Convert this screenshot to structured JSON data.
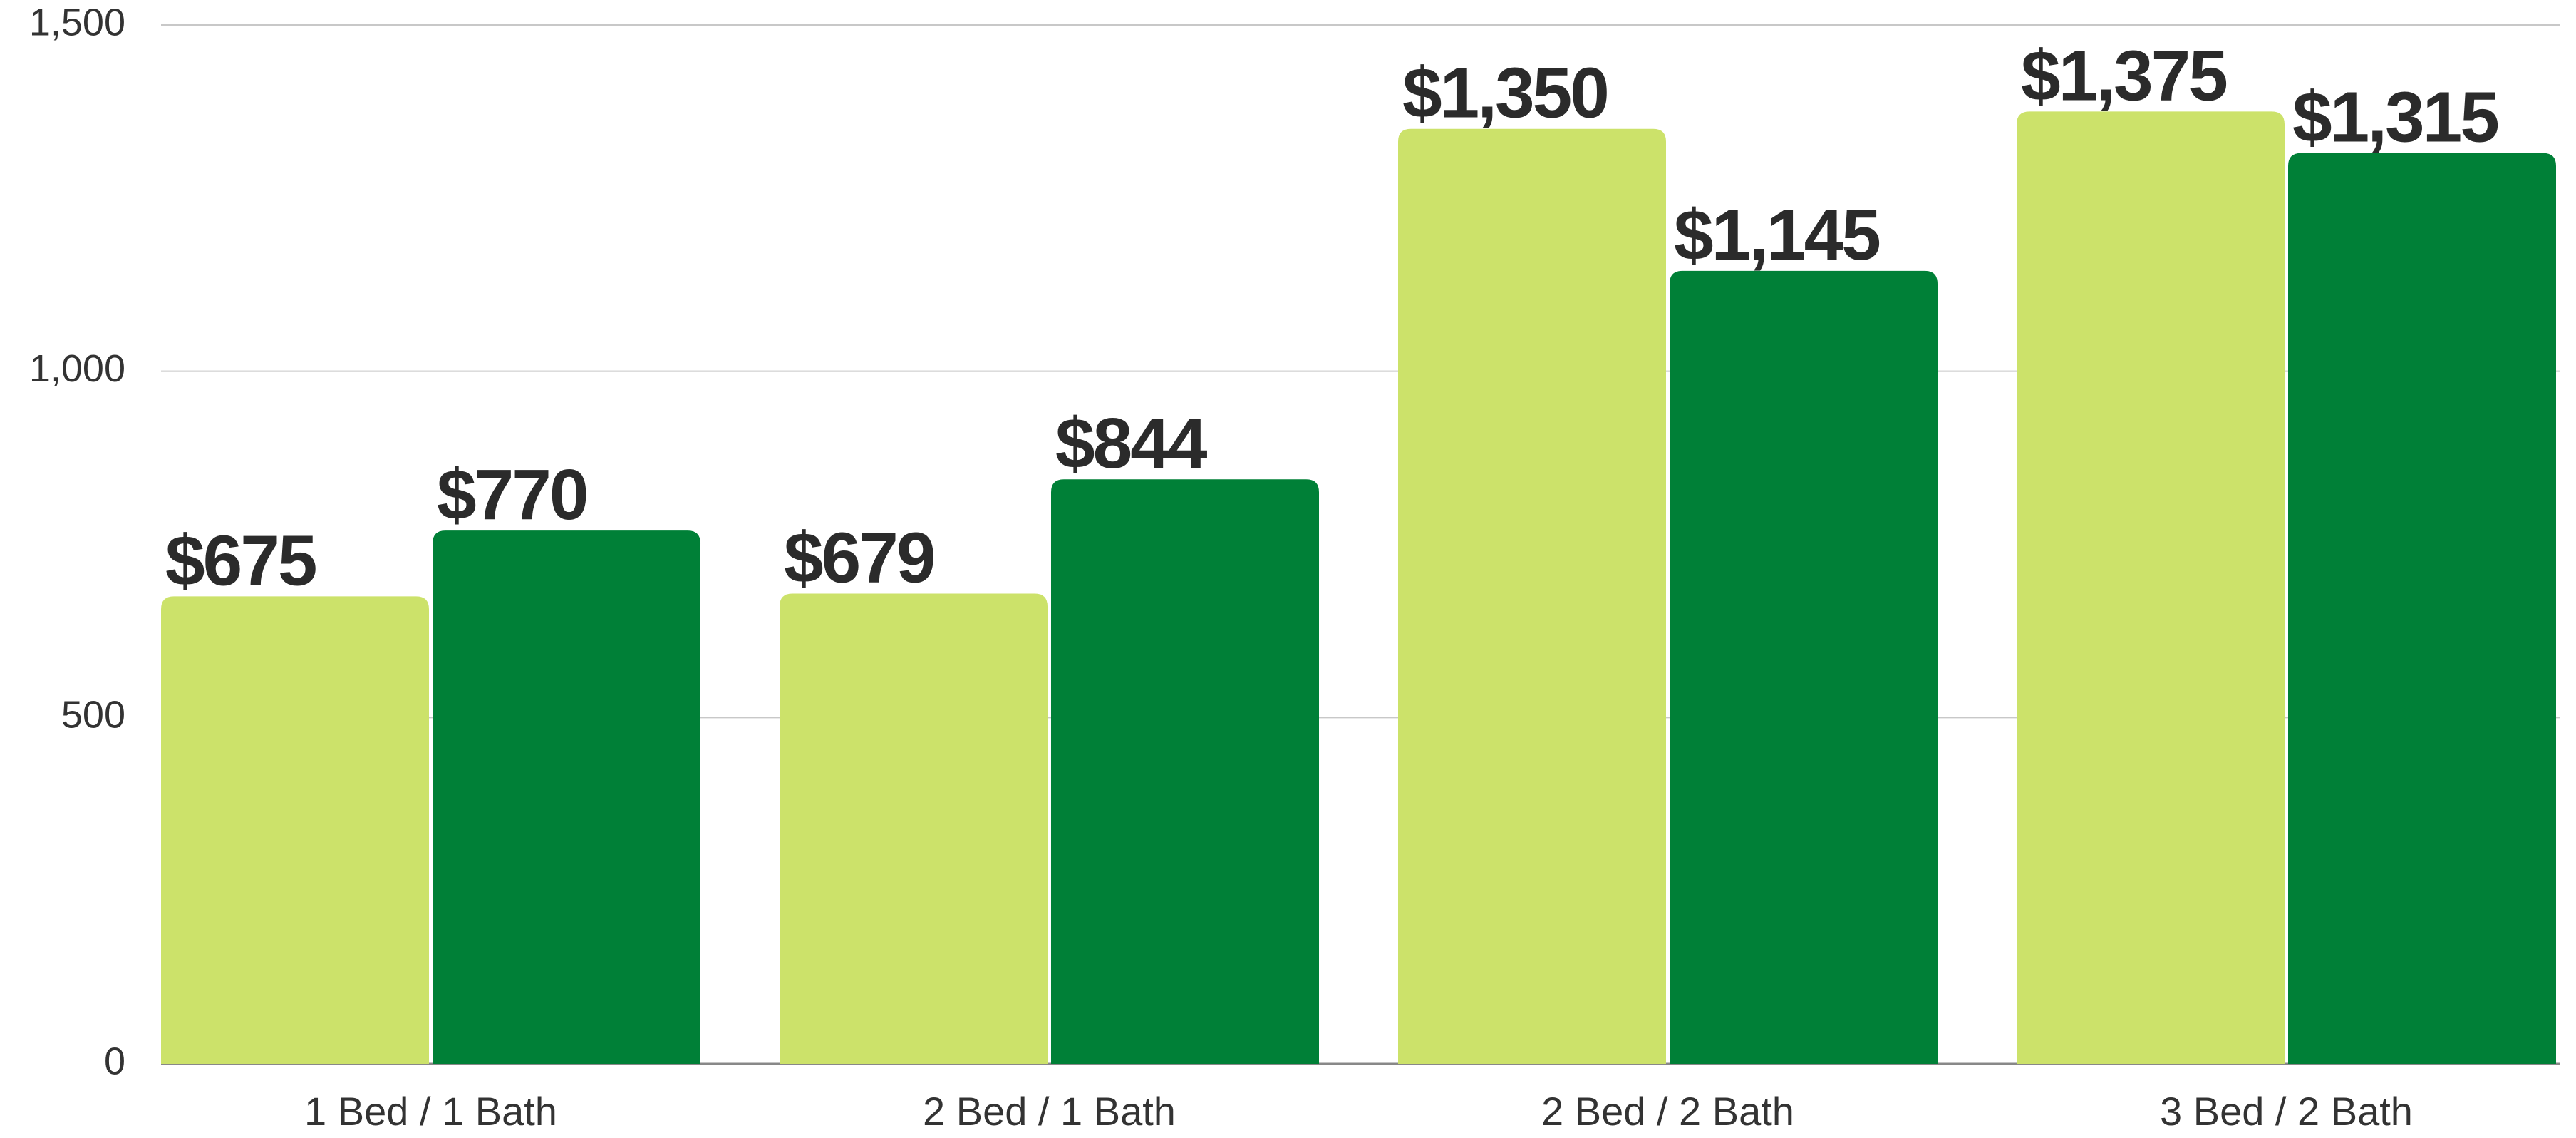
{
  "chart_data": {
    "type": "bar",
    "categories": [
      "1 Bed / 1 Bath",
      "2 Bed / 1 Bath",
      "2 Bed / 2 Bath",
      "3 Bed / 2 Bath"
    ],
    "series": [
      {
        "color": "#cce26a",
        "values": [
          675,
          679,
          1350,
          1375
        ],
        "value_labels": [
          "$675",
          "$679",
          "$1,350",
          "$1,375"
        ]
      },
      {
        "color": "#008037",
        "values": [
          770,
          844,
          1145,
          1315
        ],
        "value_labels": [
          "$770",
          "$844",
          "$1,145",
          "$1,315"
        ]
      }
    ],
    "ylim": [
      0,
      1500
    ],
    "yticks": [
      0,
      {
        "value": 500,
        "label": "500"
      },
      {
        "value": 1000,
        "label": "1,000"
      },
      {
        "value": 1500,
        "label": "1,500"
      }
    ],
    "grid": true
  }
}
